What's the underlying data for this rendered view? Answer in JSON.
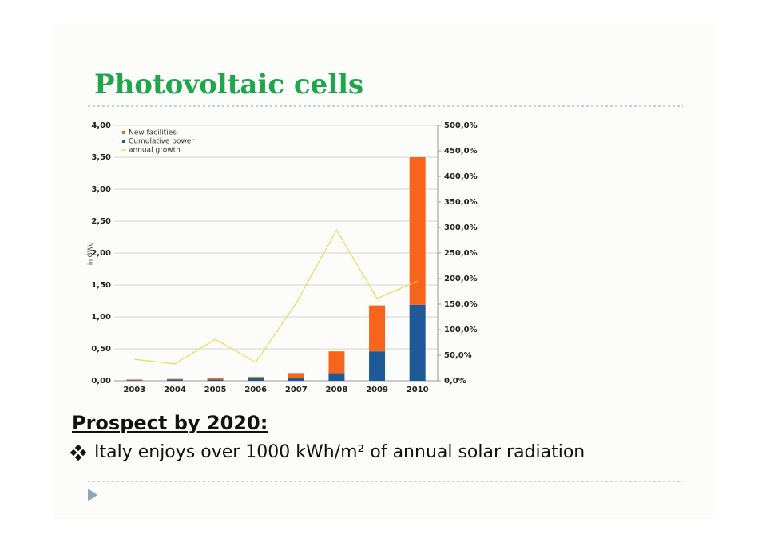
{
  "slide": {
    "title": "Photovoltaic cells",
    "heading": "Prospect by 2020:",
    "bullet": "Italy enjoys over 1000 kWh/m² of annual solar radiation"
  },
  "chart_data": {
    "type": "bar",
    "y_label": "in GWc",
    "categories": [
      "2003",
      "2004",
      "2005",
      "2006",
      "2007",
      "2008",
      "2009",
      "2010"
    ],
    "series": [
      {
        "name": "New facilities",
        "color": "#f7651b",
        "values": [
          0.01,
          0.01,
          0.02,
          0.02,
          0.07,
          0.34,
          0.72,
          2.31
        ]
      },
      {
        "name": "Cumulative power",
        "color": "#1f5a98",
        "values": [
          0.01,
          0.02,
          0.02,
          0.04,
          0.05,
          0.12,
          0.46,
          1.19
        ]
      },
      {
        "name": "annual growth",
        "type": "line",
        "axis": "y2",
        "color": "#e9dc55",
        "values": [
          42,
          33,
          81,
          36,
          152,
          295,
          161,
          195
        ]
      }
    ],
    "ylim": [
      0,
      4
    ],
    "yticks": [
      {
        "value": 0,
        "label": "0,00"
      },
      {
        "value": 0.5,
        "label": "0,50"
      },
      {
        "value": 1,
        "label": "1,00"
      },
      {
        "value": 1.5,
        "label": "1,50"
      },
      {
        "value": 2,
        "label": "2,00"
      },
      {
        "value": 2.5,
        "label": "2,50"
      },
      {
        "value": 3,
        "label": "3,00"
      },
      {
        "value": 3.5,
        "label": "3,50"
      },
      {
        "value": 4,
        "label": "4,00"
      }
    ],
    "y2lim": [
      0,
      500
    ],
    "y2ticks": [
      {
        "value": 0,
        "label": "0,0%"
      },
      {
        "value": 50,
        "label": "50,0%"
      },
      {
        "value": 100,
        "label": "100,0%"
      },
      {
        "value": 150,
        "label": "150,0%"
      },
      {
        "value": 200,
        "label": "200,0%"
      },
      {
        "value": 250,
        "label": "250,0%"
      },
      {
        "value": 300,
        "label": "300,0%"
      },
      {
        "value": 350,
        "label": "350,0%"
      },
      {
        "value": 400,
        "label": "400,0%"
      },
      {
        "value": 450,
        "label": "450,0%"
      },
      {
        "value": 500,
        "label": "500,0%"
      }
    ],
    "grid": true,
    "legend": "top-left"
  }
}
